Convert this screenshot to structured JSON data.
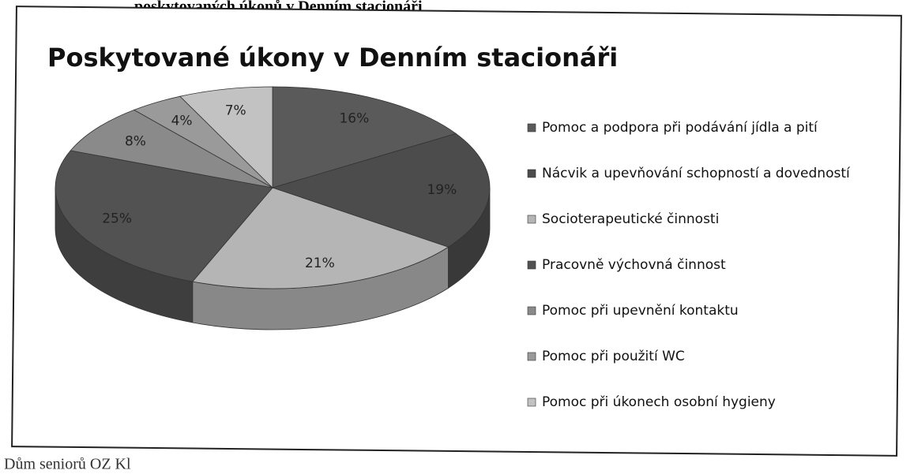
{
  "caption": "poskytovaných úkonů v Denním stacionáři",
  "footer": "Dům seniorů OZ Kl",
  "chart_data": {
    "type": "pie",
    "title": "Poskytované úkony v Denním stacionáři",
    "categories": [
      "Pomoc a podpora při podávání jídla a pití",
      "Nácvik a upevňování schopností a dovedností",
      "Socioterapeutické činnosti",
      "Pracovně výchovná činnost",
      "Pomoc při upevnění kontaktu",
      "Pomoc při použití WC",
      "Pomoc při úkonech osobní hygieny"
    ],
    "values": [
      16,
      19,
      21,
      25,
      8,
      4,
      7
    ],
    "value_labels": [
      "16%",
      "19%",
      "21%",
      "25%",
      "8%",
      "4%",
      "7%"
    ],
    "colors": [
      "#5a5a5a",
      "#4c4c4c",
      "#b5b5b5",
      "#525252",
      "#8a8a8a",
      "#9a9a9a",
      "#c2c2c2"
    ],
    "legend": "right"
  }
}
